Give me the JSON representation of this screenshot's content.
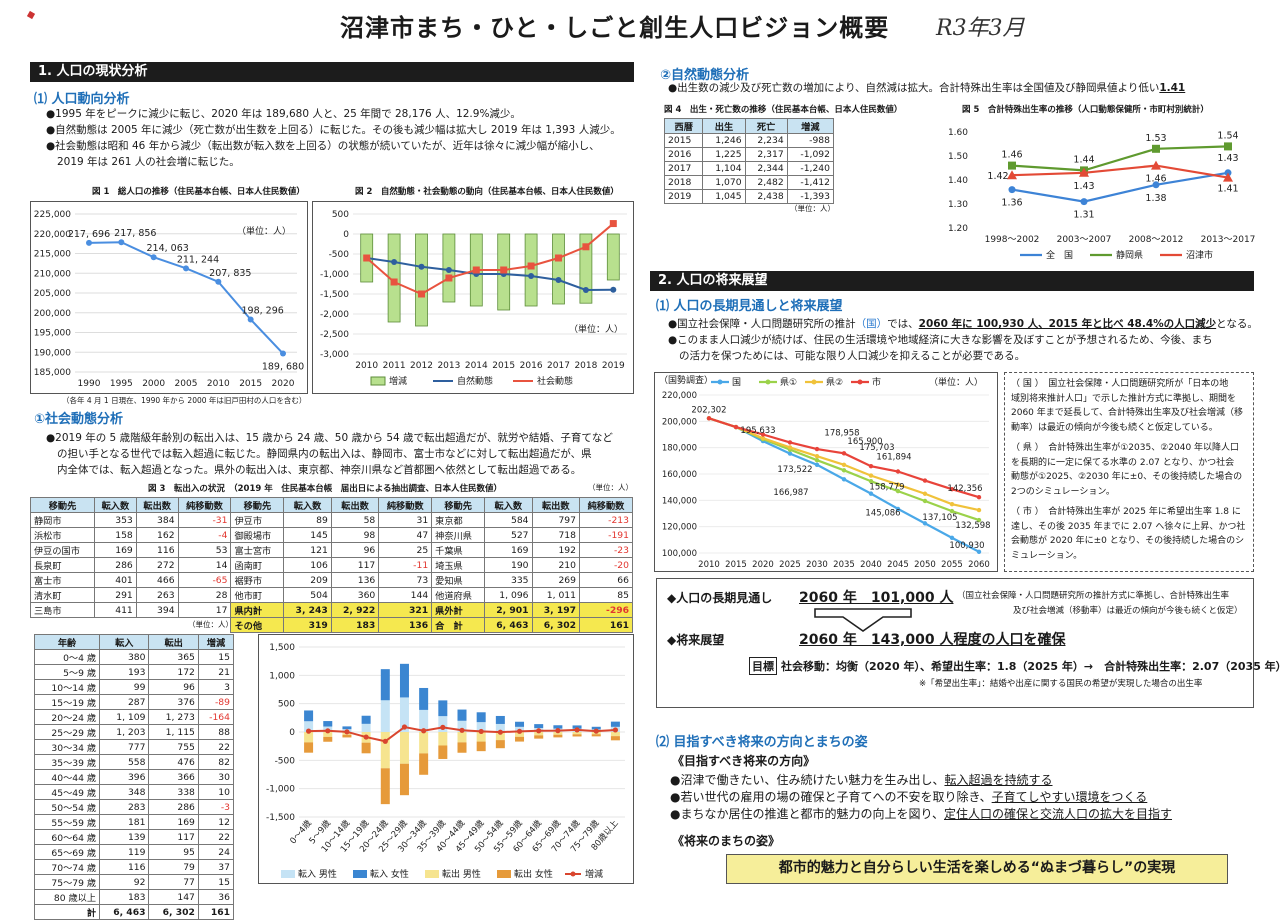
{
  "header": {
    "title": "沼津市まち・ひと・しごと創生人口ビジョン概要",
    "handwritten": "R3年3月"
  },
  "sec1": {
    "title": "1. 人口の現状分析",
    "sub1": "⑴ 人口動向分析",
    "p1": "●1995 年をピークに減少に転じ、2020 年は 189,680 人と、25 年間で 28,176 人、12.9%減少。",
    "p2": "●自然動態は 2005 年に減少（死亡数が出生数を上回る）に転じた。その後も減少幅は拡大し 2019 年は 1,393 人減少。",
    "p3a": "●社会動態は昭和 46 年から減少（転出数が転入数を上回る）の状態が続いていたが、近年は徐々に減少幅が縮小し、",
    "p3b": "2019 年は 261 人の社会増に転じた。",
    "fig1_cap": "図 1　総人口の推移（住民基本台帳、日本人住民数値）",
    "fig2_cap": "図 2　自然動態・社会動態の動向（住民基本台帳、日本人住民数値）",
    "unit": "（単位：人）",
    "fig1_note": "（各年 4 月 1 日現在、1990 年から 2000 年は旧戸田村の人口を含む）",
    "sub2": "①社会動態分析",
    "p4a": "●2019 年の 5 歳階級年齢別の転出入は、15 歳から 24 歳、50 歳から 54 歳で転出超過だが、就労や結婚、子育てなど",
    "p4b": "の担い手となる世代では転入超過に転じた。静岡県内の転出入は、静岡市、富士市などに対して転出超過だが、県",
    "p4c": "内全体では、転入超過となった。県外の転出入は、東京都、神奈川県など首都圏へ依然として転出超過である。",
    "fig3_cap": "図 3　転出入の状況　（2019 年　住民基本台帳　届出日による抽出調査、日本人住民数値）",
    "unit2": "（単位：人）"
  },
  "fig1_chart": {
    "type": "line",
    "categories": [
      "1990",
      "1995",
      "2000",
      "2005",
      "2010",
      "2015",
      "2020"
    ],
    "values": [
      217696,
      217856,
      214063,
      211244,
      207835,
      198296,
      189680
    ],
    "labels": [
      "217, 696",
      "217, 856",
      "214, 063",
      "211, 244",
      "207, 835",
      "198, 296",
      "189, 680"
    ],
    "yticks": [
      "225,000",
      "220,000",
      "215,000",
      "210,000",
      "205,000",
      "200,000",
      "195,000",
      "190,000",
      "185,000"
    ],
    "ylim": [
      185000,
      225000
    ]
  },
  "fig2_chart": {
    "type": "bar",
    "categories": [
      "2010",
      "2011",
      "2012",
      "2013",
      "2014",
      "2015",
      "2016",
      "2017",
      "2018",
      "2019"
    ],
    "series": [
      {
        "name": "増減",
        "values": [
          -1200,
          -2200,
          -2300,
          -1700,
          -1800,
          -1900,
          -1800,
          -1750,
          -1730,
          -1150
        ]
      },
      {
        "name": "自然動態",
        "values": [
          -600,
          -700,
          -820,
          -900,
          -1000,
          -1000,
          -1050,
          -1150,
          -1400,
          -1393
        ]
      },
      {
        "name": "社会動態",
        "values": [
          -600,
          -1200,
          -1500,
          -1100,
          -900,
          -900,
          -800,
          -600,
          -320,
          261
        ]
      }
    ],
    "yticks": [
      "500",
      "0",
      "-500",
      "-1,000",
      "-1,500",
      "-2,000",
      "-2,500",
      "-3,000"
    ],
    "ylim": [
      -3000,
      500
    ],
    "colors": {
      "bar": "#b8e08e",
      "natural": "#2e5f9e",
      "social": "#e8533f"
    }
  },
  "fig3_table": {
    "head": [
      "移動先",
      "転入数",
      "転出数",
      "純移動数",
      "移動先",
      "転入数",
      "転出数",
      "純移動数",
      "移動先",
      "転入数",
      "転出数",
      "純移動数"
    ],
    "rows": [
      [
        "静岡市",
        "353",
        "384",
        "-31",
        "伊豆市",
        "89",
        "58",
        "31",
        "東京都",
        "584",
        "797",
        "-213"
      ],
      [
        "浜松市",
        "158",
        "162",
        "-4",
        "御殿場市",
        "145",
        "98",
        "47",
        "神奈川県",
        "527",
        "718",
        "-191"
      ],
      [
        "伊豆の国市",
        "169",
        "116",
        "53",
        "富士宮市",
        "121",
        "96",
        "25",
        "千葉県",
        "169",
        "192",
        "-23"
      ],
      [
        "長泉町",
        "286",
        "272",
        "14",
        "函南町",
        "106",
        "117",
        "-11",
        "埼玉県",
        "190",
        "210",
        "-20"
      ],
      [
        "富士市",
        "401",
        "466",
        "-65",
        "裾野市",
        "209",
        "136",
        "73",
        "愛知県",
        "335",
        "269",
        "66"
      ],
      [
        "清水町",
        "291",
        "263",
        "28",
        "他市町",
        "504",
        "360",
        "144",
        "他道府県",
        "1, 096",
        "1, 011",
        "85"
      ],
      [
        "三島市",
        "411",
        "394",
        "17",
        "県内計",
        "3, 243",
        "2, 922",
        "321",
        "県外計",
        "2, 901",
        "3, 197",
        "-296"
      ],
      [
        "",
        "",
        "",
        "",
        "その他",
        "319",
        "183",
        "136",
        "合　計",
        "6, 463",
        "6, 302",
        "161"
      ]
    ]
  },
  "age_table": {
    "head": [
      "年齢",
      "転入",
      "転出",
      "増減"
    ],
    "rows": [
      [
        "0～4 歳",
        "380",
        "365",
        "15"
      ],
      [
        "5～9 歳",
        "193",
        "172",
        "21"
      ],
      [
        "10～14 歳",
        "99",
        "96",
        "3"
      ],
      [
        "15～19 歳",
        "287",
        "376",
        "-89"
      ],
      [
        "20～24 歳",
        "1, 109",
        "1, 273",
        "-164"
      ],
      [
        "25～29 歳",
        "1, 203",
        "1, 115",
        "88"
      ],
      [
        "30～34 歳",
        "777",
        "755",
        "22"
      ],
      [
        "35～39 歳",
        "558",
        "476",
        "82"
      ],
      [
        "40～44 歳",
        "396",
        "366",
        "30"
      ],
      [
        "45～49 歳",
        "348",
        "338",
        "10"
      ],
      [
        "50～54 歳",
        "283",
        "286",
        "-3"
      ],
      [
        "55～59 歳",
        "181",
        "169",
        "12"
      ],
      [
        "60～64 歳",
        "139",
        "117",
        "22"
      ],
      [
        "65～69 歳",
        "119",
        "95",
        "24"
      ],
      [
        "70～74 歳",
        "116",
        "79",
        "37"
      ],
      [
        "75～79 歳",
        "92",
        "77",
        "15"
      ],
      [
        "80 歳以上",
        "183",
        "147",
        "36"
      ],
      [
        "計",
        "6, 463",
        "6, 302",
        "161"
      ]
    ]
  },
  "age_chart": {
    "type": "bar",
    "categories": [
      "0～4歳",
      "5～9歳",
      "10～14歳",
      "15～19歳",
      "20～24歳",
      "25～29歳",
      "30～34歳",
      "35～39歳",
      "40～44歳",
      "45～49歳",
      "50～54歳",
      "55～59歳",
      "60～64歳",
      "65～69歳",
      "70～74歳",
      "75～79歳",
      "80歳以上"
    ],
    "series": [
      {
        "name": "転入 男性",
        "values": [
          190,
          97,
          50,
          144,
          560,
          610,
          390,
          280,
          198,
          174,
          142,
          91,
          70,
          60,
          58,
          46,
          91
        ]
      },
      {
        "name": "転入 女性",
        "values": [
          190,
          96,
          49,
          143,
          549,
          593,
          387,
          278,
          198,
          174,
          141,
          90,
          69,
          59,
          58,
          46,
          92
        ]
      },
      {
        "name": "転出 男性",
        "values": [
          -183,
          -86,
          -48,
          -188,
          -640,
          -560,
          -378,
          -238,
          -183,
          -169,
          -143,
          -85,
          -59,
          -48,
          -40,
          -39,
          -73
        ]
      },
      {
        "name": "転出 女性",
        "values": [
          -182,
          -86,
          -48,
          -188,
          -633,
          -555,
          -377,
          -238,
          -183,
          -169,
          -143,
          -84,
          -58,
          -47,
          -39,
          -38,
          -74
        ]
      },
      {
        "name": "増減",
        "values": [
          15,
          21,
          3,
          -89,
          -164,
          88,
          22,
          82,
          30,
          10,
          -3,
          12,
          22,
          24,
          37,
          15,
          36
        ]
      }
    ],
    "yticks": [
      "1,500",
      "1,000",
      "500",
      "0",
      "-500",
      "-1,000",
      "-1,500"
    ],
    "ylim": [
      -1500,
      1500
    ],
    "colors": {
      "in_m": "#c5e3f5",
      "in_f": "#3b86d1",
      "out_m": "#f6e48f",
      "out_f": "#e69a3a",
      "net": "#d9452e"
    }
  },
  "sec2nat": {
    "sub": "②自然動態分析",
    "p1": "●出生数の減少及び死亡数の増加により、自然減は拡大。合計特殊出生率は全国値及び静岡県値より低い",
    "p1v": "1.41",
    "fig4_cap": "図 4　出生・死亡数の推移（住民基本台帳、日本人住民数値）",
    "fig5_cap": "図 5　合計特殊出生率の推移（人口動態保健所・市町村別統計）",
    "unit": "（単位：人）"
  },
  "fig4_table": {
    "head": [
      "西暦",
      "出生",
      "死亡",
      "増減"
    ],
    "rows": [
      [
        "2015",
        "1,246",
        "2,234",
        "-988"
      ],
      [
        "2016",
        "1,225",
        "2,317",
        "-1,092"
      ],
      [
        "2017",
        "1,104",
        "2,344",
        "-1,240"
      ],
      [
        "2018",
        "1,070",
        "2,482",
        "-1,412"
      ],
      [
        "2019",
        "1,045",
        "2,438",
        "-1,393"
      ]
    ]
  },
  "fig5_chart": {
    "type": "line",
    "categories": [
      "1998～2002",
      "2003～2007",
      "2008～2012",
      "2013～2017"
    ],
    "series": [
      {
        "name": "全　国",
        "values": [
          1.36,
          1.31,
          1.38,
          1.43
        ]
      },
      {
        "name": "静岡県",
        "values": [
          1.46,
          1.44,
          1.53,
          1.54
        ]
      },
      {
        "name": "沼津市",
        "values": [
          1.42,
          1.43,
          1.46,
          1.41
        ]
      }
    ],
    "yticks": [
      "1.60",
      "1.50",
      "1.40",
      "1.30",
      "1.20"
    ],
    "ylim": [
      1.2,
      1.6
    ],
    "colors": {
      "nation": "#3d83d6",
      "pref": "#5f9a2f",
      "city": "#e34a36"
    }
  },
  "sec2": {
    "title": "2. 人口の将来展望",
    "sub1": "⑴ 人口の長期見通しと将来展望",
    "p1a": "●国立社会保障・人口問題研究所の推計",
    "p1b": "（国）",
    "p1c": "では、",
    "p1d": "2060 年に 100,930 人、2015 年と比べ 48.4%の人口減少",
    "p1e": "となる。",
    "p2a": "●このまま人口減少が続けば、住民の生活環境や地域経済に大きな影響を及ぼすことが予想されるため、今後、まち",
    "p2b": "の活力を保つためには、可能な限り人口減少を抑えることが必要である。"
  },
  "proj_chart": {
    "type": "line",
    "ytitle": "（国勢調査）",
    "unit": "（単位：人）",
    "categories": [
      "2010",
      "2015",
      "2020",
      "2025",
      "2030",
      "2035",
      "2040",
      "2045",
      "2050",
      "2055",
      "2060"
    ],
    "series": [
      {
        "name": "国",
        "values": [
          202302,
          195633,
          185000,
          175500,
          166987,
          156000,
          145086,
          133500,
          122500,
          111500,
          100930
        ]
      },
      {
        "name": "県①",
        "values": [
          202302,
          195633,
          186500,
          178500,
          170500,
          162800,
          154500,
          147000,
          139500,
          131800,
          125000
        ]
      },
      {
        "name": "県②",
        "values": [
          202302,
          195633,
          187200,
          180200,
          173522,
          167000,
          158779,
          152000,
          145000,
          137105,
          132598
        ]
      },
      {
        "name": "市",
        "values": [
          202302,
          195633,
          190000,
          184000,
          178958,
          175703,
          165900,
          161894,
          155000,
          148500,
          142356
        ]
      }
    ],
    "yticks": [
      "220,000",
      "200,000",
      "180,000",
      "160,000",
      "140,000",
      "120,000",
      "100,000"
    ],
    "ylim": [
      100000,
      220000
    ],
    "labels": [
      "202,302",
      "195,633",
      "173,522",
      "166,987",
      "178,958",
      "175,703",
      "165,900",
      "161,894",
      "158,779",
      "145,086",
      "142,356",
      "137,105",
      "132,598",
      "100,930"
    ],
    "colors": {
      "nation": "#4aa8e8",
      "pref1": "#9bd24a",
      "pref2": "#f0c23a",
      "city": "#e8433a"
    }
  },
  "notes": {
    "n1a": "（ 国 ）　国立社会保障・人口問題研究所が「日本の地",
    "n1b": "域別将来推計人口」で示した推計方式に準拠し、期間を",
    "n1c": "2060 年まで延長して、合計特殊出生率及び社会増減（移",
    "n1d": "動率）は最近の傾向が今後も続くと仮定している。",
    "n2a": "（ 県 ）　合計特殊出生率が①2035、②2040 年以降人口",
    "n2b": "を長期的に一定に保てる水準の 2.07 となり、かつ社会",
    "n2c": "動態が①2025、②2030 年に±0、その後持続した場合の",
    "n2d": "2つのシミュレーション。",
    "n3a": "（ 市 ）　合計特殊出生率が 2025 年に希望出生率 1.8 に",
    "n3b": "達し、その後 2035 年までに 2.07 へ徐々に上昇、かつ社",
    "n3c": "会動態が 2020 年に±0 となり、その後持続した場合のシ",
    "n3d": "ミュレーション。"
  },
  "summary": {
    "a_label": "◆人口の長期見通し",
    "a_value": "2060 年　101,000 人",
    "a_note1": "（国立社会保障・人口問題研究所の推計方式に準拠し、合計特殊出生率",
    "a_note2": "及び社会増減（移動率）は最近の傾向が今後も続くと仮定）",
    "b_label": "◆将来展望",
    "b_value": "2060 年　143,000 人程度の人口を確保",
    "goal_tag": "目標",
    "goal_text": "社会移動：均衡（2020 年）、希望出生率：1.8（2025 年）→　合計特殊出生率：2.07（2035 年）",
    "goal_note": "※「希望出生率」：結婚や出産に関する国民の希望が実現した場合の出生率"
  },
  "vision": {
    "sub": "⑵ 目指すべき将来の方向とまちの姿",
    "h1": "《目指すべき将来の方向》",
    "b1a": "●沼津で働きたい、住み続けたい魅力を生み出し、",
    "b1b": "転入超過を持続する",
    "b2a": "●若い世代の雇用の場の確保と子育てへの不安を取り除き、",
    "b2b": "子育てしやすい環境をつくる",
    "b3a": "●まちなか居住の推進と都市的魅力の向上を図り、",
    "b3b": "定住人口の確保と交流人口の拡大を目指す",
    "h2": "《将来のまちの姿》",
    "final": "都市的魅力と自分らしい生活を楽しめる“ぬまづ暮らし”の実現"
  },
  "legends": {
    "fig2": [
      "増減",
      "自然動態",
      "社会動態"
    ],
    "age": [
      "転入 男性",
      "転入 女性",
      "転出 男性",
      "転出 女性",
      "増減"
    ],
    "fig5": [
      "全　国",
      "静岡県",
      "沼津市"
    ],
    "proj": [
      "国",
      "県①",
      "県②",
      "市"
    ]
  }
}
